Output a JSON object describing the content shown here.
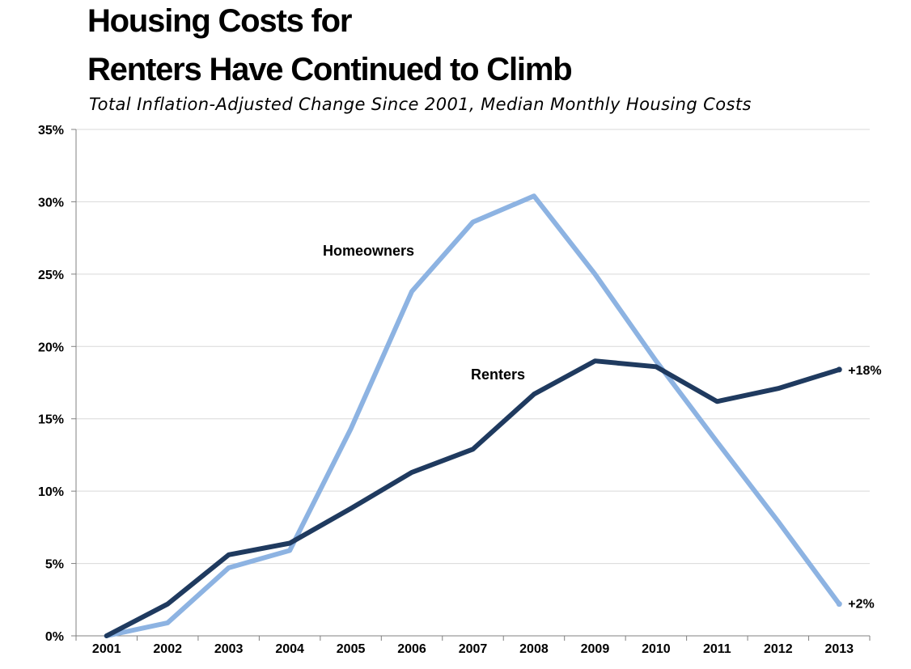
{
  "title_line1": "Housing Costs for",
  "title_line2": "Renters Have Continued to Climb",
  "subtitle": "Total Inflation-Adjusted Change Since 2001, Median Monthly Housing Costs",
  "chart_data": {
    "type": "line",
    "title": "Housing Costs for Renters Have Continued to Climb",
    "subtitle": "Total Inflation-Adjusted Change Since 2001, Median Monthly Housing Costs",
    "xlabel": "",
    "ylabel": "",
    "ylim": [
      0,
      35
    ],
    "y_ticks": [
      0,
      5,
      10,
      15,
      20,
      25,
      30,
      35
    ],
    "y_tick_labels": [
      "0%",
      "5%",
      "10%",
      "15%",
      "20%",
      "25%",
      "30%",
      "35%"
    ],
    "grid": "horizontal",
    "categories": [
      "2001",
      "2002",
      "2003",
      "2004",
      "2005",
      "2006",
      "2007",
      "2008",
      "2009",
      "2010",
      "2011",
      "2012",
      "2013"
    ],
    "series": [
      {
        "name": "Homeowners",
        "color": "#8db3e2",
        "values": [
          0,
          0.9,
          4.7,
          5.9,
          14.3,
          23.8,
          28.6,
          30.4,
          25.0,
          19.0,
          13.4,
          7.9,
          2.2
        ],
        "end_label": "+2%"
      },
      {
        "name": "Renters",
        "color": "#1f3a5f",
        "values": [
          0,
          2.2,
          5.6,
          6.4,
          8.8,
          11.3,
          12.9,
          16.7,
          19.0,
          18.6,
          16.2,
          17.1,
          18.4
        ],
        "end_label": "+18%"
      }
    ]
  }
}
